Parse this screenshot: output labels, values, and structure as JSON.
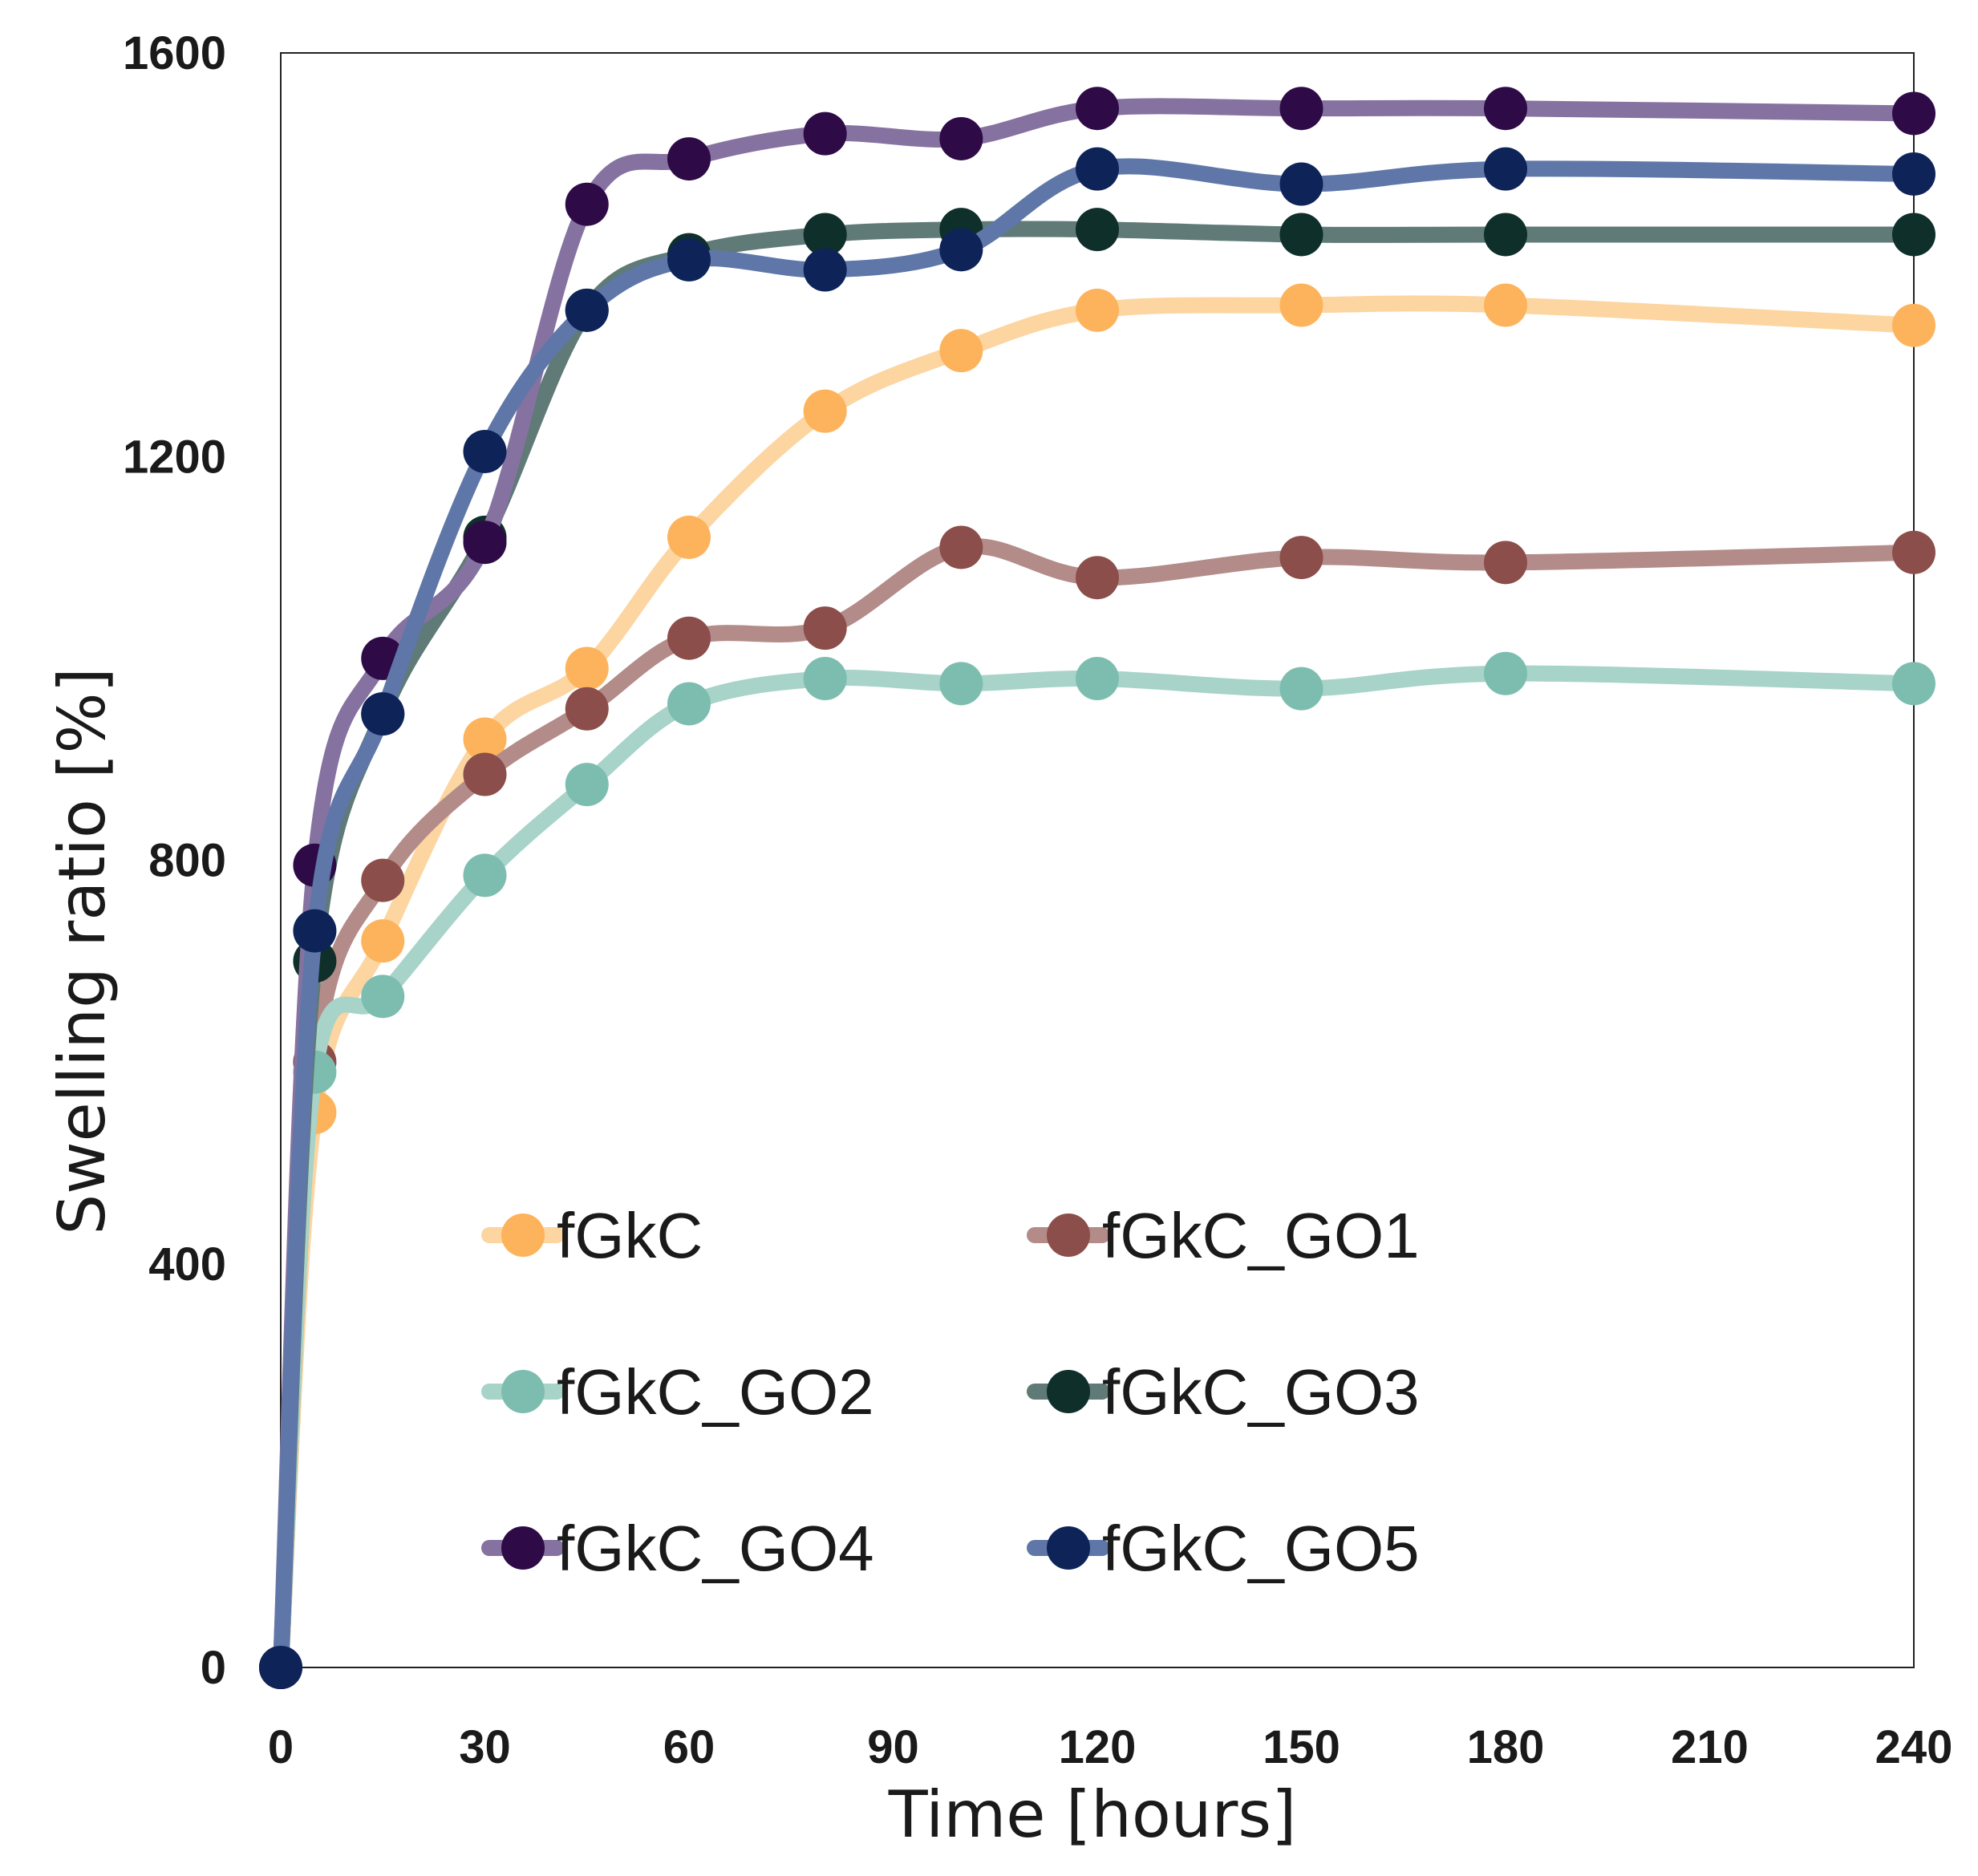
{
  "chart_data": {
    "type": "line",
    "title": "",
    "xlabel": "Time [hours]",
    "ylabel": "Swelling ratio [%]",
    "xlim": [
      0,
      240
    ],
    "ylim": [
      0,
      1600
    ],
    "xticks": [
      "0",
      "30",
      "60",
      "90",
      "120",
      "150",
      "180",
      "210",
      "240"
    ],
    "yticks": [
      "0",
      "400",
      "800",
      "1200",
      "1600"
    ],
    "grid": false,
    "legend_position": "lower-center",
    "x": [
      0,
      5,
      15,
      30,
      45,
      60,
      80,
      100,
      120,
      150,
      180,
      240
    ],
    "series": [
      {
        "name": "fGkC",
        "color": "#FDB35C",
        "line_color": "#FCD5A1",
        "values": [
          0,
          550,
          720,
          920,
          990,
          1120,
          1245,
          1305,
          1345,
          1350,
          1350,
          1330
        ]
      },
      {
        "name": "fGkC_GO1",
        "color": "#8B4E4A",
        "line_color": "#B38C89",
        "values": [
          0,
          600,
          780,
          885,
          950,
          1020,
          1030,
          1110,
          1080,
          1100,
          1095,
          1105
        ]
      },
      {
        "name": "fGkC_GO2",
        "color": "#7DBDB0",
        "line_color": "#A7D3C9",
        "values": [
          0,
          590,
          665,
          785,
          875,
          955,
          980,
          975,
          980,
          970,
          985,
          975
        ]
      },
      {
        "name": "fGkC_GO3",
        "color": "#0E2F2A",
        "line_color": "#5F7A77",
        "values": [
          0,
          700,
          945,
          1120,
          1345,
          1400,
          1420,
          1425,
          1425,
          1420,
          1420,
          1420
        ]
      },
      {
        "name": "fGkC_GO4",
        "color": "#2E0B47",
        "line_color": "#8672A0",
        "values": [
          0,
          795,
          1000,
          1115,
          1450,
          1495,
          1520,
          1515,
          1545,
          1545,
          1545,
          1540
        ]
      },
      {
        "name": "fGkC_GO5",
        "color": "#0E2459",
        "line_color": "#5F77A8",
        "values": [
          0,
          730,
          945,
          1205,
          1345,
          1395,
          1385,
          1405,
          1485,
          1470,
          1485,
          1480
        ]
      }
    ]
  }
}
